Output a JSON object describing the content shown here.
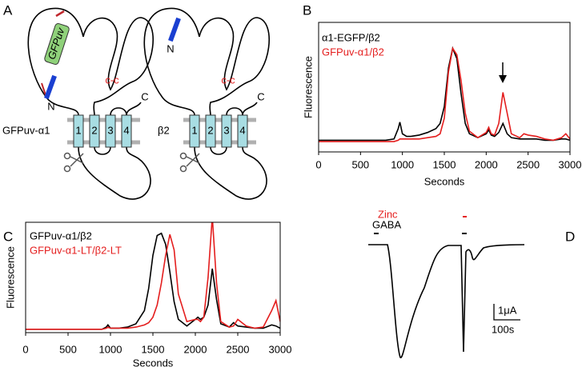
{
  "panel_labels": [
    "A",
    "B",
    "C",
    "D"
  ],
  "diagram": {
    "receptors": [
      {
        "name": "GFPuv-α1",
        "tag": "GFPuv",
        "n_terminus": "N",
        "c_terminus": "C",
        "bond": "c-c",
        "helices": [
          "1",
          "2",
          "3",
          "4"
        ]
      },
      {
        "name": "β2",
        "n_terminus": "N",
        "c_terminus": "C",
        "bond": "c-c",
        "helices": [
          "1",
          "2",
          "3",
          "4"
        ]
      }
    ]
  },
  "trace": {
    "labels": [
      "Zinc",
      "GABA"
    ],
    "scale_current": "1μA",
    "scale_time": "100s"
  },
  "chart_data": [
    {
      "type": "line",
      "xlabel": "Seconds",
      "ylabel": "Fluorescence",
      "x": [
        0,
        200,
        400,
        600,
        800,
        900,
        950,
        970,
        1000,
        1050,
        1100,
        1200,
        1300,
        1400,
        1450,
        1500,
        1550,
        1600,
        1650,
        1700,
        1750,
        1800,
        1900,
        2000,
        2030,
        2060,
        2100,
        2150,
        2200,
        2250,
        2300,
        2400,
        2450,
        2500,
        2600,
        2700,
        2800,
        2900,
        2950,
        3000
      ],
      "series": [
        {
          "name": "α1-EGFP/β2",
          "color": "#000000",
          "values": [
            9,
            9,
            9,
            9,
            9,
            10,
            18,
            23,
            14,
            12,
            12,
            13,
            15,
            18,
            22,
            35,
            65,
            80,
            72,
            45,
            22,
            14,
            11,
            14,
            17,
            13,
            12,
            15,
            22,
            14,
            11,
            10,
            10,
            10,
            10,
            9,
            9,
            10,
            10,
            9
          ]
        },
        {
          "name": "GFPuv-α1/β2",
          "color": "#e41e1e",
          "values": [
            8,
            8,
            8,
            8,
            8,
            8,
            9,
            10,
            10,
            10,
            10,
            10,
            11,
            12,
            14,
            26,
            62,
            80,
            75,
            55,
            30,
            16,
            11,
            15,
            19,
            14,
            13,
            22,
            46,
            30,
            14,
            11,
            14,
            13,
            12,
            10,
            9,
            11,
            14,
            10
          ]
        }
      ],
      "xlim": [
        0,
        3000
      ],
      "ylim": [
        0,
        100
      ],
      "xticks": [
        0,
        500,
        1000,
        1500,
        2000,
        2500,
        3000
      ]
    },
    {
      "type": "line",
      "xlabel": "Seconds",
      "ylabel": "Fluorescence",
      "x": [
        0,
        200,
        400,
        600,
        800,
        900,
        950,
        970,
        1000,
        1050,
        1100,
        1200,
        1300,
        1400,
        1450,
        1500,
        1550,
        1600,
        1650,
        1700,
        1750,
        1800,
        1900,
        2000,
        2030,
        2060,
        2100,
        2150,
        2200,
        2250,
        2300,
        2400,
        2450,
        2500,
        2600,
        2700,
        2800,
        2900,
        2950,
        3000
      ],
      "series": [
        {
          "name": "GFPuv-α1/β2",
          "color": "#000000",
          "values": [
            3,
            3,
            3,
            3,
            3,
            3,
            5,
            7,
            4,
            4,
            4,
            5,
            8,
            20,
            40,
            70,
            88,
            90,
            80,
            55,
            28,
            12,
            6,
            12,
            14,
            12,
            14,
            25,
            58,
            30,
            8,
            5,
            9,
            6,
            5,
            4,
            4,
            7,
            6,
            4
          ]
        },
        {
          "name": "GFPuv-α1-LT/β2-LT",
          "color": "#e41e1e",
          "values": [
            3,
            3,
            3,
            3,
            3,
            3,
            4,
            5,
            4,
            4,
            4,
            4,
            5,
            7,
            9,
            14,
            25,
            45,
            70,
            89,
            75,
            35,
            10,
            12,
            12,
            10,
            14,
            50,
            105,
            45,
            10,
            5,
            6,
            12,
            6,
            4,
            5,
            20,
            29,
            10
          ]
        }
      ],
      "xlim": [
        0,
        3000
      ],
      "ylim": [
        0,
        100
      ],
      "xticks": [
        0,
        500,
        1000,
        1500,
        2000,
        2500,
        3000
      ]
    }
  ]
}
